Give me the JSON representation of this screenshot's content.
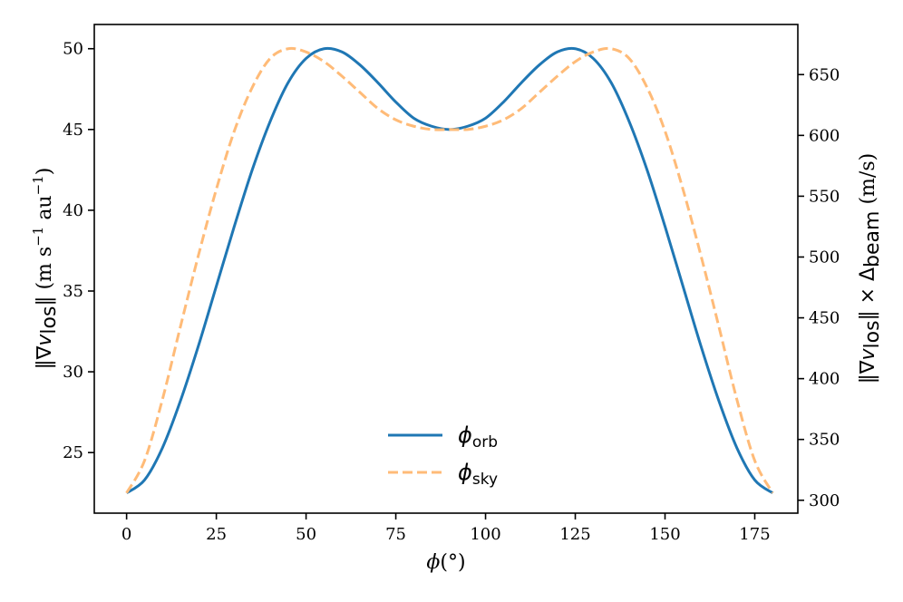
{
  "chart_data": {
    "type": "line",
    "xlabel": {
      "main": "ϕ",
      "rest": "(°)"
    },
    "ylabel_left": {
      "open": "‖∇",
      "v": "v",
      "sub": "los",
      "close": "‖ (m s",
      "sup1": "−1",
      "mid": " au",
      "sup2": "−1",
      "end": ")"
    },
    "ylabel_right": {
      "open": "‖∇",
      "v": "v",
      "sub": "los",
      "close": "‖ × Δ",
      "sub2": "beam",
      "end": " (m/s)"
    },
    "xlim": [
      -9,
      187
    ],
    "ylim": [
      21.25,
      51.5
    ],
    "ylim_right": [
      289.4,
      691.2
    ],
    "x_ticks": [
      "0",
      "25",
      "50",
      "75",
      "100",
      "125",
      "150",
      "175"
    ],
    "x_tick_values": [
      0,
      25,
      50,
      75,
      100,
      125,
      150,
      175
    ],
    "y_ticks": [
      "25",
      "30",
      "35",
      "40",
      "45",
      "50"
    ],
    "y_tick_values": [
      25,
      30,
      35,
      40,
      45,
      50
    ],
    "y_ticks_right": [
      "300",
      "350",
      "400",
      "450",
      "500",
      "550",
      "600",
      "650"
    ],
    "y_tick_values_right": [
      300,
      350,
      400,
      450,
      500,
      550,
      600,
      650
    ],
    "legend_position": "lower-center",
    "series": [
      {
        "name": "ϕ",
        "sub": "orb",
        "color": "#1f77b4",
        "dash": "solid",
        "x": [
          0,
          5,
          10,
          15,
          20,
          25,
          30,
          35,
          40,
          45,
          50,
          55,
          60,
          65,
          70,
          75,
          80,
          85,
          90,
          95,
          100,
          105,
          110,
          115,
          120,
          125,
          130,
          135,
          140,
          145,
          150,
          155,
          160,
          165,
          170,
          175,
          180
        ],
        "y": [
          22.5,
          23.3,
          25.3,
          28.2,
          31.6,
          35.3,
          39.0,
          42.5,
          45.5,
          47.9,
          49.4,
          50.0,
          49.8,
          49.0,
          47.9,
          46.7,
          45.7,
          45.2,
          45.0,
          45.2,
          45.7,
          46.7,
          47.9,
          49.0,
          49.8,
          50.0,
          49.4,
          47.9,
          45.5,
          42.5,
          39.0,
          35.3,
          31.6,
          28.2,
          25.3,
          23.3,
          22.5
        ]
      },
      {
        "name": "ϕ",
        "sub": "sky",
        "color": "#ffbb78",
        "dash": "dashed",
        "x": [
          0,
          5,
          10,
          15,
          20,
          25,
          30,
          35,
          40,
          45,
          50,
          55,
          60,
          65,
          70,
          75,
          80,
          85,
          90,
          95,
          100,
          105,
          110,
          115,
          120,
          125,
          130,
          135,
          140,
          145,
          150,
          155,
          160,
          165,
          170,
          175,
          180
        ],
        "y": [
          22.5,
          24.5,
          28.3,
          32.8,
          37.2,
          41.3,
          44.9,
          47.6,
          49.4,
          50.0,
          49.8,
          49.2,
          48.3,
          47.3,
          46.3,
          45.6,
          45.2,
          45.0,
          45.0,
          45.0,
          45.2,
          45.6,
          46.3,
          47.3,
          48.3,
          49.2,
          49.8,
          50.0,
          49.4,
          47.6,
          44.9,
          41.3,
          37.2,
          32.8,
          28.3,
          24.5,
          22.5
        ]
      }
    ]
  }
}
